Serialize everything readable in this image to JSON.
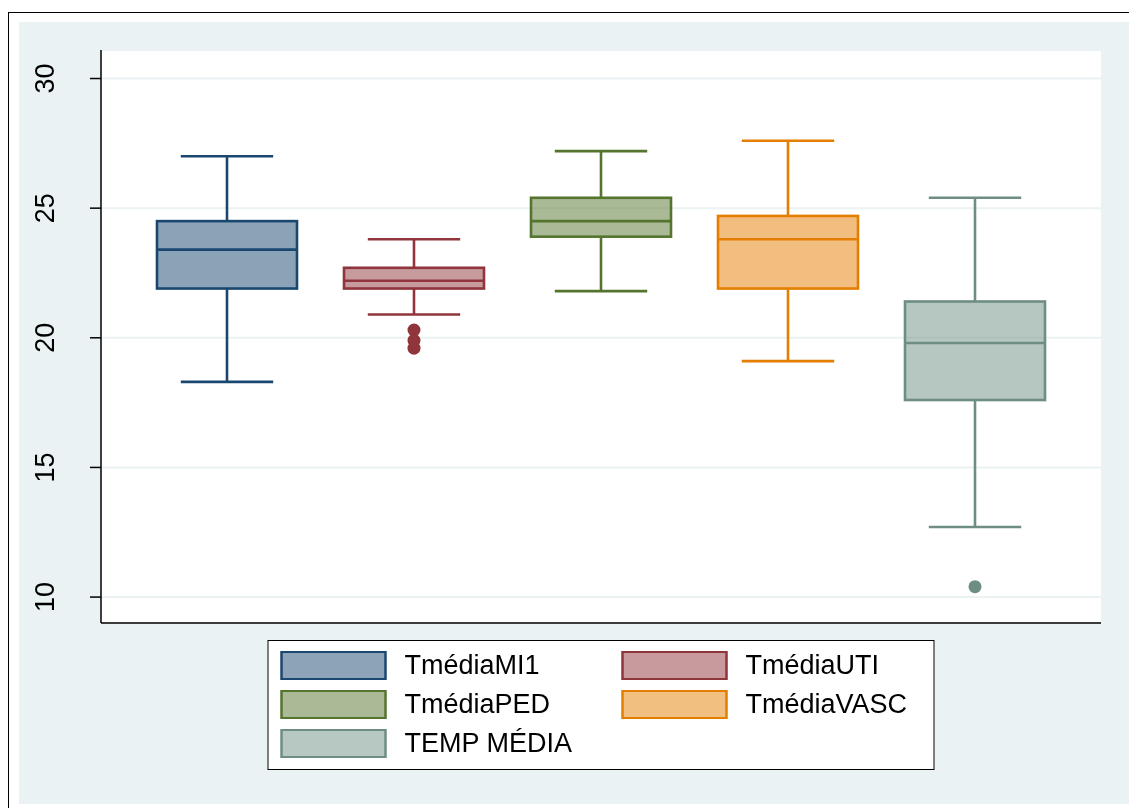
{
  "chart_data": {
    "type": "box",
    "categories": [
      null
    ],
    "series": [
      {
        "name": "TmédiaMI1",
        "color": "#1a476f",
        "boxes": [
          {
            "low": 18.3,
            "q1": 21.9,
            "median": 23.4,
            "q3": 24.5,
            "high": 27.0
          }
        ]
      },
      {
        "name": "TmédiaUTI",
        "color": "#90353b",
        "boxes": [
          {
            "low": 20.9,
            "q1": 21.9,
            "median": 22.2,
            "q3": 22.7,
            "high": 23.8,
            "outliers": [
              20.3,
              19.9,
              19.6
            ]
          }
        ]
      },
      {
        "name": "TmédiaPED",
        "color": "#55752f",
        "boxes": [
          {
            "low": 21.8,
            "q1": 23.9,
            "median": 24.5,
            "q3": 25.4,
            "high": 27.2
          }
        ]
      },
      {
        "name": "TmédiaVASC",
        "color": "#e37e00",
        "boxes": [
          {
            "low": 19.1,
            "q1": 21.9,
            "median": 23.8,
            "q3": 24.7,
            "high": 27.6
          }
        ]
      },
      {
        "name": "TEMP MÉDIA",
        "color": "#6e8e84",
        "boxes": [
          {
            "low": 12.7,
            "q1": 17.6,
            "median": 19.8,
            "q3": 21.4,
            "high": 25.4,
            "outliers": [
              10.4
            ]
          }
        ]
      }
    ],
    "ylim": [
      9.0,
      31.1
    ],
    "yticks": [
      10,
      15,
      20,
      25,
      30
    ],
    "grid": "y",
    "legend": "bottom"
  }
}
